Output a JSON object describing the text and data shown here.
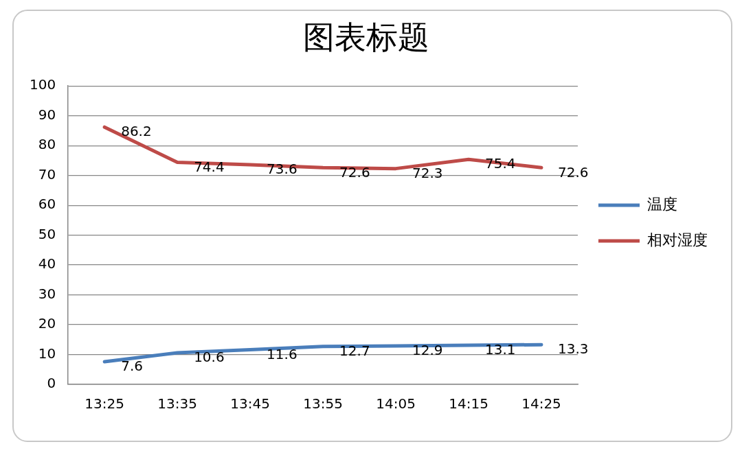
{
  "chart_data": {
    "type": "line",
    "title": "图表标题",
    "categories": [
      "13:25",
      "13:35",
      "13:45",
      "13:55",
      "14:05",
      "14:15",
      "14:25"
    ],
    "series": [
      {
        "name": "温度",
        "color": "#4a7ebb",
        "values": [
          7.6,
          10.6,
          11.6,
          12.7,
          12.9,
          13.1,
          13.3
        ]
      },
      {
        "name": "相对湿度",
        "color": "#be4b48",
        "values": [
          86.2,
          74.4,
          73.6,
          72.6,
          72.3,
          75.4,
          72.6
        ]
      }
    ],
    "ylim": [
      0,
      100
    ],
    "yticks": [
      0,
      10,
      20,
      30,
      40,
      50,
      60,
      70,
      80,
      90,
      100
    ],
    "grid": "y",
    "legend": "right",
    "marker": "none",
    "line_style": "solid",
    "data_labels": true
  }
}
